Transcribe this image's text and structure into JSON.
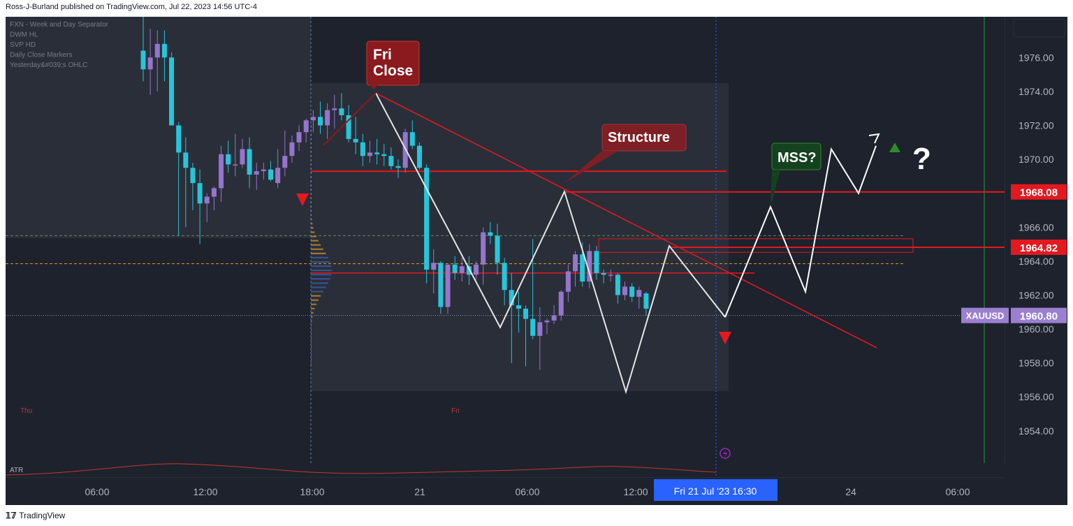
{
  "header": {
    "text": "Ross-J-Burland published on TradingView.com, Jul 22, 2023 14:56 UTC-4"
  },
  "footer": {
    "brand": "TradingView",
    "logo_icon": "tradingview-logo-icon"
  },
  "indicators": [
    "FXN - Week and Day Separator",
    "DWM HL",
    "SVP HD",
    "Daily Close Markers",
    "Yesterday&#039;s OHLC"
  ],
  "day_labels": {
    "thu": "Thu",
    "fri": "Fri"
  },
  "sub_pane_label": "ATR",
  "annotations": {
    "fri_close": [
      "Fri",
      "Close"
    ],
    "structure": "Structure",
    "mss": "MSS?",
    "question": "?"
  },
  "price_tags": [
    {
      "label": "1968.08",
      "price": 1968.08,
      "color": "#e3191f"
    },
    {
      "label": "1964.82",
      "price": 1964.82,
      "color": "#e3191f"
    }
  ],
  "symbol_tag": {
    "symbol": "XAUUSD",
    "price_label": "1960.80",
    "price": 1960.8,
    "color": "#9b7fd1"
  },
  "crosshair_time_label": "Fri 21 Jul '23   16:30",
  "colors": {
    "background": "#1e222d",
    "bull": "#26c6da",
    "bear": "#9575cd",
    "accent_red": "#e3191f",
    "label_red": "#8b1a1f",
    "green_label": "#14421f",
    "grid": "#262a35"
  },
  "chart_data": {
    "type": "candlestick",
    "title": "",
    "symbol": "XAUUSD",
    "y_axis": {
      "ticks": [
        1954,
        1956,
        1958,
        1960,
        1962,
        1964,
        1966,
        1968,
        1970,
        1972,
        1974,
        1976
      ],
      "tick_labels": [
        "1954.00",
        "1956.00",
        "1958.00",
        "1960.00",
        "1962.00",
        "1964.00",
        "1966.00",
        "1968.00",
        "1970.00",
        "1972.00",
        "1974.00",
        "1976.00"
      ],
      "ylim": [
        1952.1,
        1978.4
      ]
    },
    "x_axis": {
      "tick_labels": [
        "06:00",
        "12:00",
        "18:00",
        "21",
        "06:00",
        "12:00",
        "24",
        "06:00"
      ],
      "bar_interval": "30m"
    },
    "candles": [
      [
        1976.4,
        1978.4,
        1974.6,
        1975.3
      ],
      [
        1975.3,
        1977.7,
        1973.8,
        1976.0
      ],
      [
        1976.0,
        1977.6,
        1974.0,
        1976.8
      ],
      [
        1976.8,
        1977.6,
        1974.6,
        1976.0
      ],
      [
        1976.0,
        1976.3,
        1972.0,
        1972.0
      ],
      [
        1972.0,
        1972.2,
        1965.5,
        1970.4
      ],
      [
        1970.4,
        1971.3,
        1966.0,
        1969.5
      ],
      [
        1969.5,
        1969.8,
        1967.0,
        1968.6
      ],
      [
        1968.6,
        1969.4,
        1965.0,
        1967.4
      ],
      [
        1967.4,
        1968.0,
        1966.3,
        1967.8
      ],
      [
        1967.8,
        1968.4,
        1967.0,
        1968.3
      ],
      [
        1968.3,
        1970.8,
        1967.5,
        1970.3
      ],
      [
        1970.3,
        1971.1,
        1969.2,
        1969.7
      ],
      [
        1969.7,
        1971.5,
        1969.0,
        1969.7
      ],
      [
        1969.7,
        1971.2,
        1969.5,
        1970.6
      ],
      [
        1970.6,
        1971.3,
        1968.3,
        1969.1
      ],
      [
        1969.1,
        1969.8,
        1968.2,
        1969.3
      ],
      [
        1969.3,
        1969.8,
        1968.8,
        1969.4
      ],
      [
        1969.4,
        1969.9,
        1968.7,
        1968.8
      ],
      [
        1968.6,
        1970.6,
        1968.3,
        1969.5
      ],
      [
        1969.5,
        1971.7,
        1969.0,
        1970.2
      ],
      [
        1970.2,
        1971.4,
        1969.8,
        1971.0
      ],
      [
        1971.0,
        1972.0,
        1970.5,
        1971.6
      ],
      [
        1971.6,
        1972.4,
        1971.0,
        1972.3
      ],
      [
        1972.3,
        1972.9,
        1971.6,
        1972.5
      ],
      [
        1972.5,
        1973.4,
        1971.5,
        1972.0
      ],
      [
        1972.0,
        1973.3,
        1971.2,
        1972.9
      ],
      [
        1972.9,
        1973.8,
        1971.8,
        1973.0
      ],
      [
        1973.0,
        1973.9,
        1972.3,
        1972.6
      ],
      [
        1972.6,
        1973.2,
        1971.0,
        1971.2
      ],
      [
        1971.2,
        1972.5,
        1970.3,
        1971.0
      ],
      [
        1971.0,
        1971.5,
        1969.6,
        1970.2
      ],
      [
        1970.2,
        1971.1,
        1969.8,
        1970.4
      ],
      [
        1970.4,
        1971.2,
        1969.7,
        1970.3
      ],
      [
        1970.3,
        1970.9,
        1969.6,
        1970.2
      ],
      [
        1970.2,
        1970.7,
        1969.4,
        1969.6
      ],
      [
        1969.6,
        1970.0,
        1968.9,
        1969.5
      ],
      [
        1969.5,
        1971.8,
        1969.2,
        1971.6
      ],
      [
        1971.6,
        1972.3,
        1970.6,
        1970.8
      ],
      [
        1970.8,
        1971.0,
        1969.4,
        1969.5
      ],
      [
        1969.5,
        1969.7,
        1962.7,
        1963.5
      ],
      [
        1963.5,
        1964.7,
        1962.1,
        1963.9
      ],
      [
        1963.9,
        1964.0,
        1960.9,
        1961.3
      ],
      [
        1961.3,
        1963.8,
        1960.9,
        1963.8
      ],
      [
        1963.8,
        1964.3,
        1962.9,
        1963.3
      ],
      [
        1963.3,
        1964.2,
        1962.8,
        1963.7
      ],
      [
        1963.7,
        1964.3,
        1962.6,
        1963.2
      ],
      [
        1963.2,
        1964.0,
        1962.9,
        1963.8
      ],
      [
        1963.8,
        1966.0,
        1962.6,
        1965.7
      ],
      [
        1965.7,
        1966.3,
        1965.0,
        1965.5
      ],
      [
        1965.5,
        1966.2,
        1963.2,
        1963.9
      ],
      [
        1963.9,
        1964.2,
        1961.4,
        1962.3
      ],
      [
        1962.3,
        1963.3,
        1958.0,
        1961.4
      ],
      [
        1961.4,
        1962.2,
        1959.8,
        1961.2
      ],
      [
        1961.2,
        1961.4,
        1957.8,
        1960.6
      ],
      [
        1960.6,
        1965.3,
        1959.4,
        1959.6
      ],
      [
        1959.6,
        1961.3,
        1957.6,
        1960.4
      ],
      [
        1960.4,
        1960.6,
        1959.7,
        1960.5
      ],
      [
        1960.5,
        1961.4,
        1960.3,
        1960.8
      ],
      [
        1960.8,
        1962.3,
        1960.5,
        1962.2
      ],
      [
        1962.2,
        1963.8,
        1961.6,
        1963.4
      ],
      [
        1963.4,
        1964.6,
        1962.5,
        1964.4
      ],
      [
        1964.4,
        1965.1,
        1962.5,
        1962.8
      ],
      [
        1962.8,
        1965.0,
        1962.4,
        1964.6
      ],
      [
        1964.6,
        1964.9,
        1962.9,
        1963.3
      ],
      [
        1963.3,
        1963.5,
        1962.7,
        1963.2
      ],
      [
        1963.2,
        1963.5,
        1962.8,
        1963.2
      ],
      [
        1963.2,
        1963.3,
        1961.5,
        1962.0
      ],
      [
        1962.0,
        1962.8,
        1961.7,
        1962.5
      ],
      [
        1962.5,
        1962.7,
        1961.6,
        1961.9
      ],
      [
        1961.9,
        1962.5,
        1961.2,
        1962.3
      ],
      [
        1962.1,
        1962.2,
        1960.8,
        1961.2
      ]
    ],
    "day_separators": [
      "18:00",
      "16:30"
    ],
    "levels": [
      {
        "name": "",
        "price": 1969.3,
        "color": "#e3191f"
      },
      {
        "name": "",
        "price": 1968.08,
        "color": "#e3191f"
      },
      {
        "name": "",
        "price": 1963.3,
        "color": "#e3191f"
      },
      {
        "name": "",
        "price": 1965.5,
        "color": "#5b8a55",
        "style": "dashed"
      },
      {
        "name": "",
        "price": 1963.85,
        "color": "#d4a017",
        "style": "dashed"
      },
      {
        "name": "",
        "price": 1960.8,
        "color": "#8a8fb0",
        "style": "dotted"
      }
    ],
    "zones": [
      {
        "name": "",
        "price_top": 1965.32,
        "price_bottom": 1964.52,
        "color": "#e3191f"
      }
    ],
    "projection_path_prices": [
      1973.9,
      1960.1,
      1968.1,
      1956.3,
      1964.9,
      1960.7,
      1967.2,
      1962.2,
      1970.6,
      1968.0,
      1970.8
    ],
    "projected_path_prices": [
      1960.7,
      1966.6,
      1962.2,
      1970.6,
      1968.1,
      1970.9
    ],
    "trendline_prices": [
      1973.9,
      1958.9
    ],
    "legend": "none",
    "grid": false
  }
}
